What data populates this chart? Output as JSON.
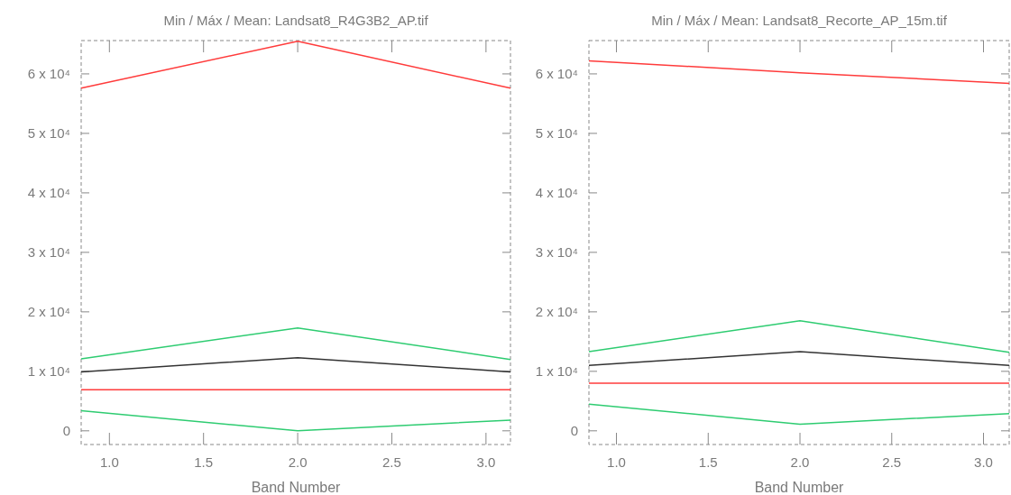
{
  "chart_data": [
    {
      "type": "line",
      "title": "Min / Máx / Mean: Landsat8_R4G3B2_AP.tif",
      "xlabel": "Band Number",
      "x": [
        0.85,
        2,
        3.13
      ],
      "xlim": [
        0.85,
        3.13
      ],
      "xticks": [
        {
          "value": 1,
          "label": "1.0"
        },
        {
          "value": 1.5,
          "label": "1.5"
        },
        {
          "value": 2,
          "label": "2.0"
        },
        {
          "value": 2.5,
          "label": "2.5"
        },
        {
          "value": 3,
          "label": "3.0"
        }
      ],
      "ylim": [
        -2300,
        65600
      ],
      "yticks": [
        0,
        {
          "value": 10000,
          "label": "1 x 10⁴"
        },
        {
          "value": 20000,
          "label": "2 x 10⁴"
        },
        {
          "value": 30000,
          "label": "3 x 10⁴"
        },
        {
          "value": 40000,
          "label": "4 x 10⁴"
        },
        {
          "value": 50000,
          "label": "5 x 10⁴"
        },
        {
          "value": 60000,
          "label": "6 x 10⁴"
        }
      ],
      "grid": false,
      "series": [
        {
          "color": "#ff3b3b",
          "values": [
            57600,
            65500,
            57600
          ]
        },
        {
          "color": "#2ecc71",
          "values": [
            12100,
            17300,
            12000
          ]
        },
        {
          "color": "#333333",
          "values": [
            9900,
            12300,
            9900
          ]
        },
        {
          "color": "#ff3b3b",
          "values": [
            6900,
            6900,
            6900
          ]
        },
        {
          "color": "#2ecc71",
          "values": [
            3400,
            0,
            1800
          ]
        }
      ]
    },
    {
      "type": "line",
      "title": "Min / Máx / Mean: Landsat8_Recorte_AP_15m.tif",
      "xlabel": "Band Number",
      "x": [
        0.85,
        2,
        3.14
      ],
      "xlim": [
        0.85,
        3.14
      ],
      "xticks": [
        {
          "value": 1,
          "label": "1.0"
        },
        {
          "value": 1.5,
          "label": "1.5"
        },
        {
          "value": 2,
          "label": "2.0"
        },
        {
          "value": 2.5,
          "label": "2.5"
        },
        {
          "value": 3,
          "label": "3.0"
        }
      ],
      "ylim": [
        -2300,
        65600
      ],
      "yticks": [
        0,
        {
          "value": 10000,
          "label": "1 x 10⁴"
        },
        {
          "value": 20000,
          "label": "2 x 10⁴"
        },
        {
          "value": 30000,
          "label": "3 x 10⁴"
        },
        {
          "value": 40000,
          "label": "4 x 10⁴"
        },
        {
          "value": 50000,
          "label": "5 x 10⁴"
        },
        {
          "value": 60000,
          "label": "6 x 10⁴"
        }
      ],
      "grid": false,
      "series": [
        {
          "color": "#ff3b3b",
          "values": [
            62200,
            60200,
            58400
          ]
        },
        {
          "color": "#2ecc71",
          "values": [
            13300,
            18500,
            13200
          ]
        },
        {
          "color": "#333333",
          "values": [
            11000,
            13300,
            11000
          ]
        },
        {
          "color": "#ff3b3b",
          "values": [
            8000,
            8000,
            8000
          ]
        },
        {
          "color": "#2ecc71",
          "values": [
            4500,
            1100,
            2900
          ]
        }
      ]
    }
  ]
}
